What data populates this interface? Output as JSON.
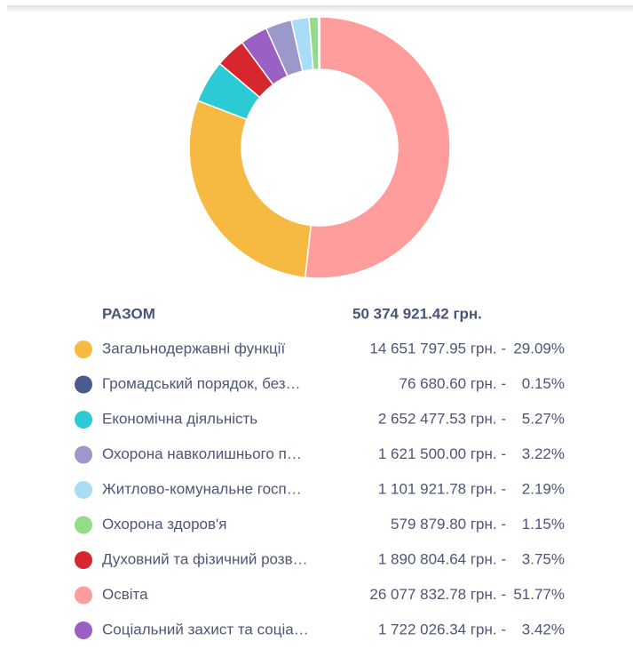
{
  "chart_data": {
    "type": "pie",
    "categories": [
      "Загальнодержавні функції",
      "Громадський порядок, без…",
      "Економічна діяльність",
      "Охорона навколишнього п…",
      "Житлово-комунальне госп…",
      "Охорона здоров'я",
      "Духовний та фізичний розв…",
      "Освіта",
      "Соціальний захист та соціа…"
    ],
    "values": [
      14651797.95,
      76680.6,
      2652477.53,
      1621500.0,
      1101921.78,
      579879.8,
      1890804.64,
      26077832.78,
      1722026.34
    ],
    "value_labels": [
      "14 651 797.95 грн. -",
      "76 680.60 грн. -",
      "2 652 477.53 грн. -",
      "1 621 500.00 грн. -",
      "1 101 921.78 грн. -",
      "579 879.80 грн. -",
      "1 890 804.64 грн. -",
      "26 077 832.78 грн. -",
      "1 722 026.34 грн. -"
    ],
    "percent_labels": [
      "29.09%",
      "0.15%",
      "5.27%",
      "3.22%",
      "2.19%",
      "1.15%",
      "3.75%",
      "51.77%",
      "3.42%"
    ],
    "colors": [
      "#f6b942",
      "#4b5b8e",
      "#2ccad5",
      "#9c98ca",
      "#a8ddf8",
      "#93dc88",
      "#d8262e",
      "#ff9c9c",
      "#9a60c4"
    ],
    "total": 50374921.42,
    "total_name": "РАЗОМ",
    "total_label": "50 374 921.42 грн."
  }
}
